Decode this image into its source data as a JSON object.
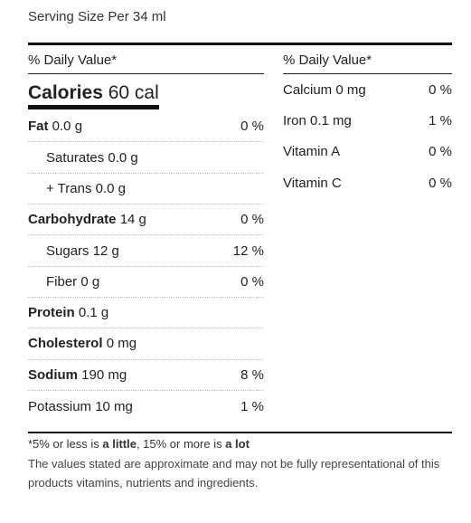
{
  "serving_size": "Serving Size Per 34 ml",
  "daily_value_header": "% Daily Value*",
  "calories": {
    "label": "Calories",
    "value": "60 cal"
  },
  "left_rows": [
    {
      "name": "Fat",
      "amount": "0.0 g",
      "pct": "0 %",
      "bold": true,
      "indent": false
    },
    {
      "name": "Saturates",
      "amount": "0.0 g",
      "pct": "",
      "bold": false,
      "indent": true
    },
    {
      "name": "+ Trans",
      "amount": "0.0 g",
      "pct": "",
      "bold": false,
      "indent": true
    },
    {
      "name": "Carbohydrate",
      "amount": "14 g",
      "pct": "0 %",
      "bold": true,
      "indent": false
    },
    {
      "name": "Sugars",
      "amount": "12 g",
      "pct": "12 %",
      "bold": false,
      "indent": true
    },
    {
      "name": "Fiber",
      "amount": "0 g",
      "pct": "0 %",
      "bold": false,
      "indent": true
    },
    {
      "name": "Protein",
      "amount": "0.1 g",
      "pct": "",
      "bold": true,
      "indent": false
    },
    {
      "name": "Cholesterol",
      "amount": "0 mg",
      "pct": "",
      "bold": true,
      "indent": false
    },
    {
      "name": "Sodium",
      "amount": "190 mg",
      "pct": "8 %",
      "bold": true,
      "indent": false
    },
    {
      "name": "Potassium",
      "amount": "10 mg",
      "pct": "1 %",
      "bold": false,
      "indent": false
    }
  ],
  "right_rows": [
    {
      "name": "Calcium",
      "amount": "0 mg",
      "pct": "0 %"
    },
    {
      "name": "Iron",
      "amount": "0.1 mg",
      "pct": "1 %"
    },
    {
      "name": "Vitamin A",
      "amount": "",
      "pct": "0 %"
    },
    {
      "name": "Vitamin C",
      "amount": "",
      "pct": "0 %"
    }
  ],
  "footnote": {
    "prefix": "*5% or less is ",
    "little": "a little",
    "middle": ", 15% or more is ",
    "lot": "a lot"
  },
  "disclaimer": "The values stated are approximate and may not be fully representational of this products vitamins, nutrients and ingredients."
}
